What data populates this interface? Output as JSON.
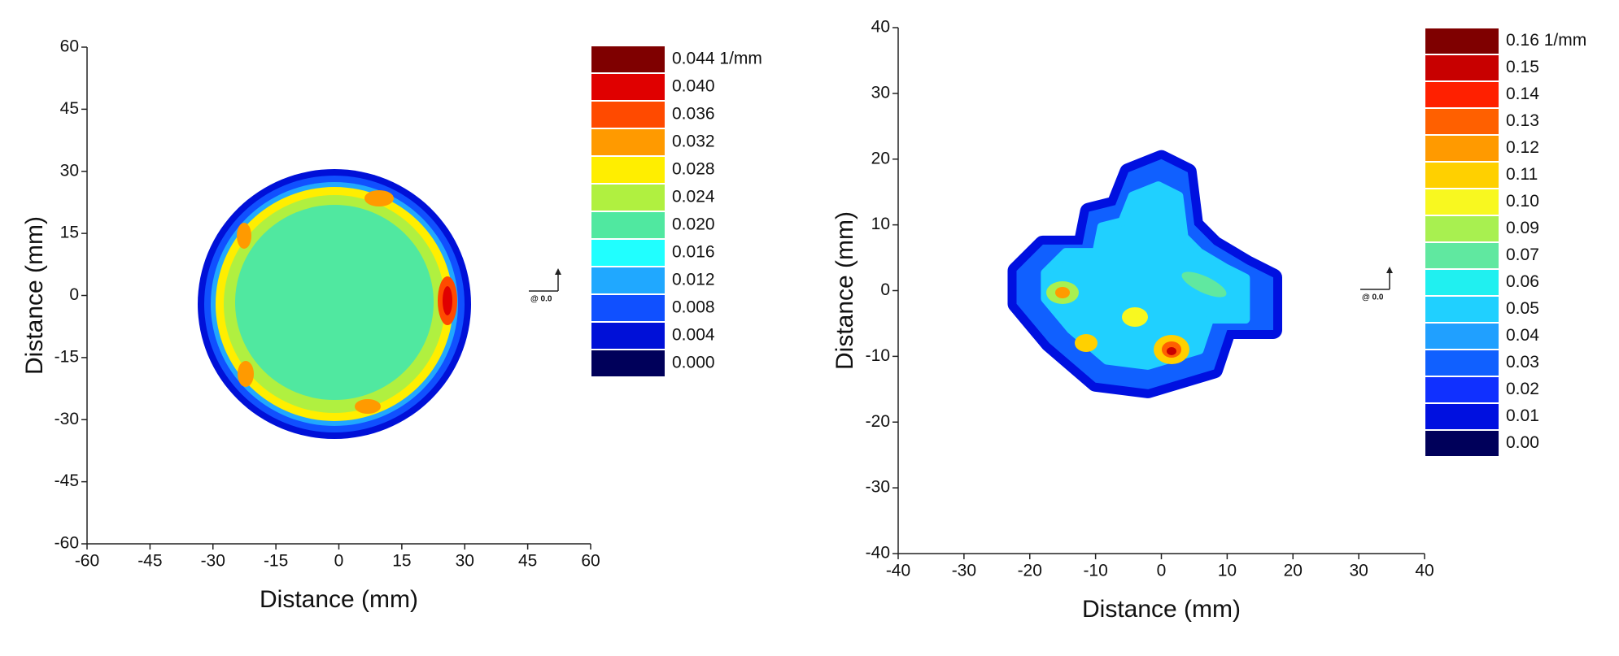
{
  "chart_data": [
    {
      "type": "contour",
      "xlabel": "Distance (mm)",
      "ylabel": "Distance (mm)",
      "xlim": [
        -60,
        60
      ],
      "ylim": [
        -60,
        60
      ],
      "xticks": [
        -60,
        -45,
        -30,
        -15,
        0,
        15,
        30,
        45,
        60
      ],
      "yticks": [
        -60,
        -45,
        -30,
        -15,
        0,
        15,
        30,
        45,
        60
      ],
      "levels": [
        {
          "value": 0.044,
          "label": "0.044 1/mm"
        },
        {
          "value": 0.04,
          "label": "0.040"
        },
        {
          "value": 0.036,
          "label": "0.036"
        },
        {
          "value": 0.032,
          "label": "0.032"
        },
        {
          "value": 0.028,
          "label": "0.028"
        },
        {
          "value": 0.024,
          "label": "0.024"
        },
        {
          "value": 0.02,
          "label": "0.020"
        },
        {
          "value": 0.016,
          "label": "0.016"
        },
        {
          "value": 0.012,
          "label": "0.012"
        },
        {
          "value": 0.008,
          "label": "0.008"
        },
        {
          "value": 0.004,
          "label": "0.004"
        },
        {
          "value": 0,
          "label": "0.000"
        }
      ],
      "colors": [
        "#7f0000",
        "#e00000",
        "#ff4a00",
        "#ff9a00",
        "#ffee00",
        "#b0f040",
        "#50e8a0",
        "#20ffff",
        "#20a8ff",
        "#1050ff",
        "#0010d8",
        "#00005a"
      ],
      "scale_note": "@ 0.0"
    },
    {
      "type": "contour",
      "xlabel": "Distance (mm)",
      "ylabel": "Distance (mm)",
      "xlim": [
        -40,
        40
      ],
      "ylim": [
        -40,
        40
      ],
      "xticks": [
        -40,
        -30,
        -20,
        -10,
        0,
        10,
        20,
        30,
        40
      ],
      "yticks": [
        -40,
        -30,
        -20,
        -10,
        0,
        10,
        20,
        30,
        40
      ],
      "levels": [
        {
          "value": 0.16,
          "label": "0.16 1/mm"
        },
        0.15,
        0.14,
        0.13,
        0.12,
        0.11,
        {
          "value": 0.1,
          "label": "0.10"
        },
        0.09,
        0.07,
        0.06,
        0.05,
        0.04,
        0.03,
        0.02,
        0.01,
        {
          "value": 0,
          "label": "0.00"
        }
      ],
      "colors": [
        "#7f0000",
        "#c80000",
        "#ff2000",
        "#ff6000",
        "#ff9a00",
        "#ffd000",
        "#f8f820",
        "#a8f050",
        "#60e8a0",
        "#20f0f0",
        "#20d0ff",
        "#20a0ff",
        "#1060ff",
        "#1030ff",
        "#0010e0",
        "#00005a"
      ],
      "scale_note": "@ 0.0"
    }
  ]
}
